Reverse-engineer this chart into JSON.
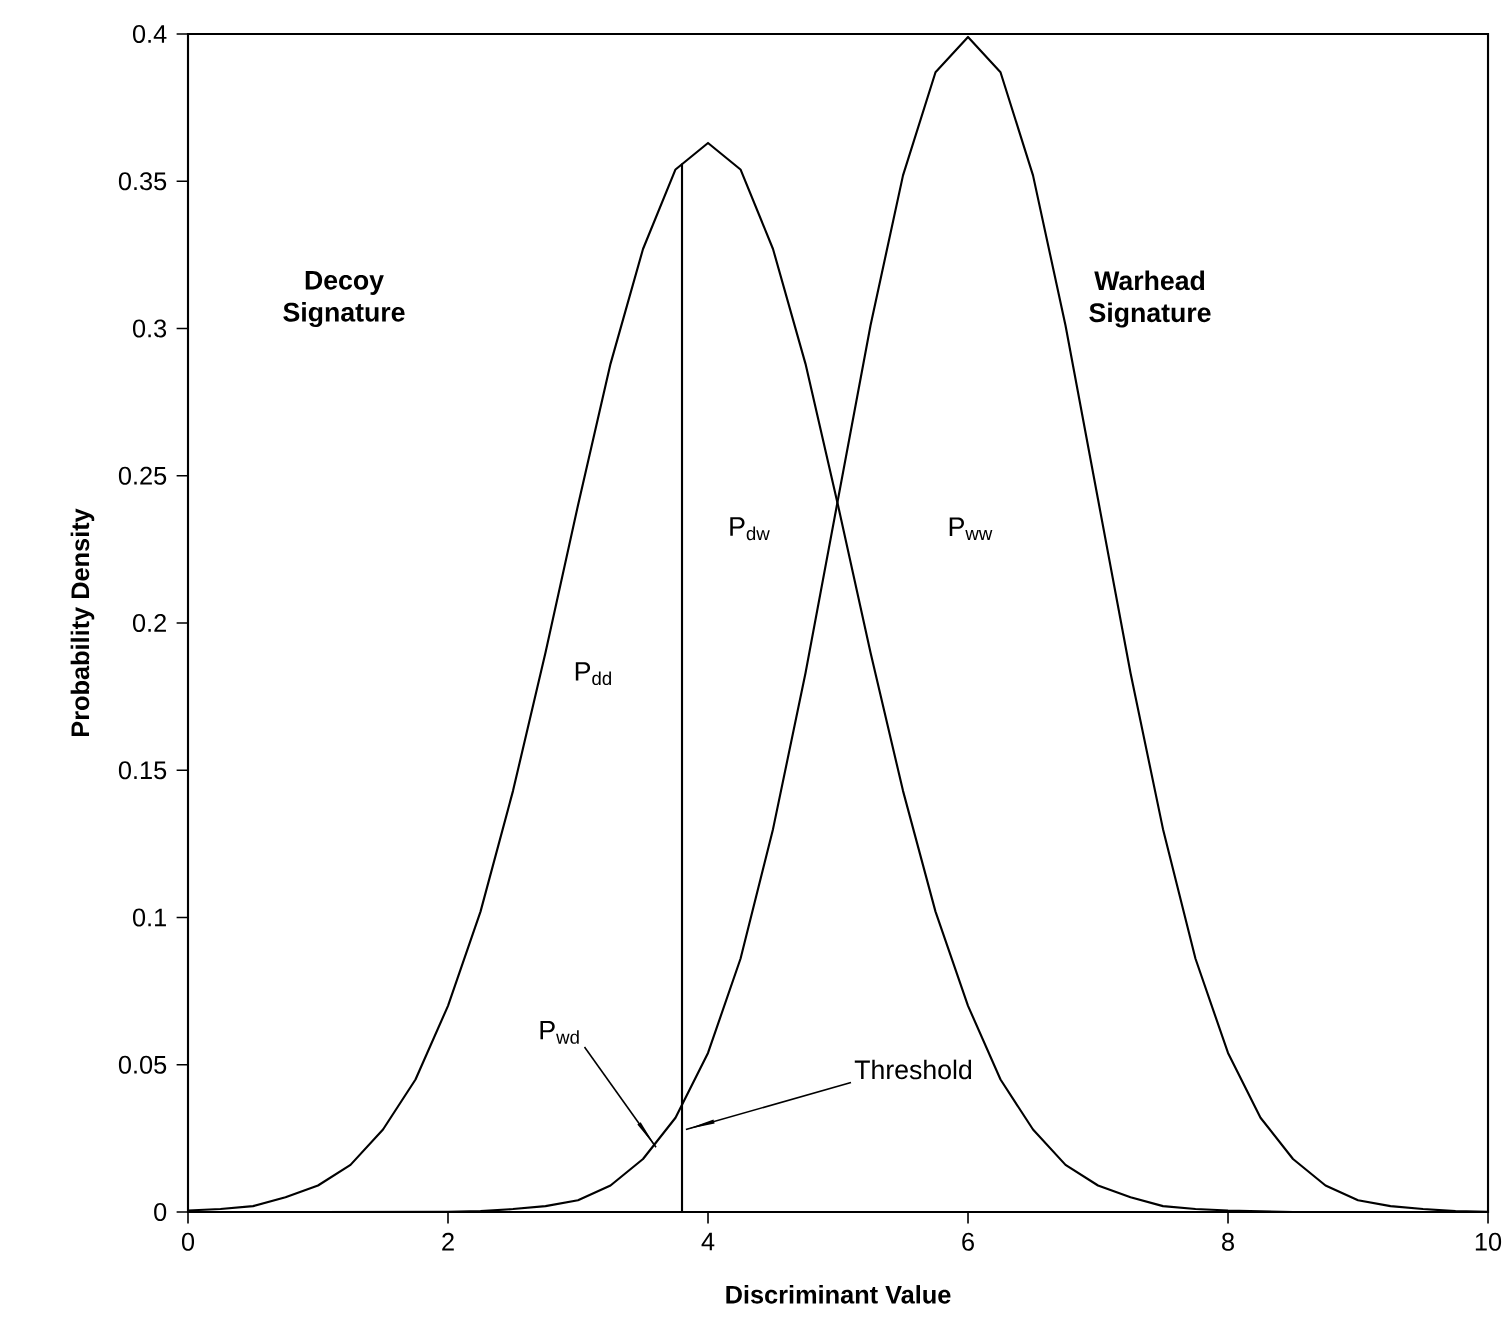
{
  "chart_data": {
    "type": "line",
    "xlabel": "Discriminant Value",
    "ylabel": "Probability Density",
    "xlim": [
      0,
      10
    ],
    "ylim": [
      0,
      0.4
    ],
    "xticks": [
      0,
      2,
      4,
      6,
      8,
      10
    ],
    "yticks": [
      0,
      0.05,
      0.1,
      0.15,
      0.2,
      0.25,
      0.3,
      0.35,
      0.4
    ],
    "grid": false,
    "marker": "none",
    "line_style": "solid",
    "series": [
      {
        "color": "#000000",
        "x": [
          0,
          0.25,
          0.5,
          0.75,
          1,
          1.25,
          1.5,
          1.75,
          2,
          2.25,
          2.5,
          2.75,
          3,
          3.25,
          3.5,
          3.75,
          4,
          4.25,
          4.5,
          4.75,
          5,
          5.25,
          5.5,
          5.75,
          6,
          6.25,
          6.5,
          6.75,
          7,
          7.25,
          7.5,
          7.75,
          8,
          8.5,
          9,
          9.5,
          10
        ],
        "values": [
          0.0005,
          0.001,
          0.002,
          0.005,
          0.009,
          0.016,
          0.028,
          0.045,
          0.07,
          0.102,
          0.143,
          0.19,
          0.24,
          0.288,
          0.327,
          0.354,
          0.363,
          0.354,
          0.327,
          0.288,
          0.24,
          0.19,
          0.143,
          0.102,
          0.07,
          0.045,
          0.028,
          0.016,
          0.009,
          0.005,
          0.002,
          0.001,
          0.0005,
          0,
          0,
          0,
          0
        ]
      },
      {
        "color": "#000000",
        "x": [
          0,
          1,
          2,
          2.25,
          2.5,
          2.75,
          3,
          3.25,
          3.5,
          3.75,
          4,
          4.25,
          4.5,
          4.75,
          5,
          5.25,
          5.5,
          5.75,
          6,
          6.25,
          6.5,
          6.75,
          7,
          7.25,
          7.5,
          7.75,
          8,
          8.25,
          8.5,
          8.75,
          9,
          9.25,
          9.5,
          9.75,
          10
        ],
        "values": [
          0,
          0,
          0.0001,
          0.0003,
          0.001,
          0.002,
          0.004,
          0.009,
          0.018,
          0.032,
          0.054,
          0.086,
          0.13,
          0.183,
          0.242,
          0.301,
          0.352,
          0.387,
          0.399,
          0.387,
          0.352,
          0.301,
          0.242,
          0.183,
          0.13,
          0.086,
          0.054,
          0.032,
          0.018,
          0.009,
          0.004,
          0.002,
          0.001,
          0.0003,
          0.0001
        ]
      },
      {
        "color": "#000000",
        "x": [
          3.8,
          3.8
        ],
        "values": [
          0,
          0.356
        ]
      }
    ],
    "annotations": [
      "**Decoy Signature**",
      "**Warhead Signature**",
      "P$_{dd}$",
      "P$_{dw}$",
      "P$_{ww}$",
      {
        "text": "P$_{wd}$",
        "x": 3.6,
        "y": 0.022
      },
      {
        "text": "Threshold",
        "x": 3.83,
        "y": 0.028
      }
    ]
  }
}
